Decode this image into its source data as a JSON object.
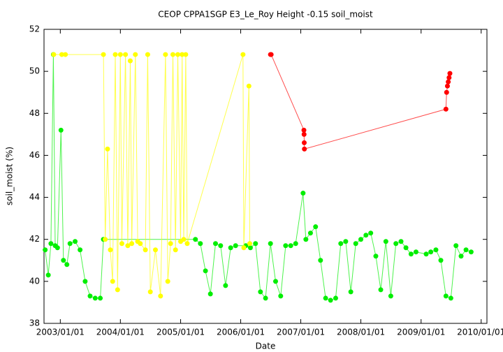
{
  "chart_data": {
    "type": "scatter",
    "title": "CEOP CPPA1SGP E3_Le_Roy Height -0.15 soil_moist",
    "xlabel": "Date",
    "ylabel": "soil_moist (%)",
    "xlim": [
      "2002/09/24",
      "2010/02/05"
    ],
    "xticks": [
      "2003/01/01",
      "2004/01/01",
      "2005/01/01",
      "2006/01/01",
      "2007/01/01",
      "2008/01/01",
      "2009/01/01",
      "2010/01/01"
    ],
    "ylim": [
      38,
      52
    ],
    "yticks": [
      38,
      40,
      42,
      44,
      46,
      48,
      50,
      52
    ],
    "series": [
      {
        "color": "#00ee00",
        "x": [
          "2002/10/01",
          "2002/10/20",
          "2002/11/05",
          "2002/11/20",
          "2002/12/01",
          "2002/12/15",
          "2003/01/05",
          "2003/01/20",
          "2003/02/10",
          "2003/03/01",
          "2003/04/01",
          "2003/05/01",
          "2003/06/01",
          "2003/07/01",
          "2003/08/01",
          "2003/09/01",
          "2003/09/20",
          "2005/04/01",
          "2005/05/01",
          "2005/06/01",
          "2005/07/01",
          "2005/08/01",
          "2005/09/01",
          "2005/10/01",
          "2005/11/01",
          "2005/12/01",
          "2006/02/01",
          "2006/03/01",
          "2006/04/01",
          "2006/05/01",
          "2006/06/01",
          "2006/07/01",
          "2006/08/01",
          "2006/09/01",
          "2006/10/01",
          "2006/11/01",
          "2006/12/01",
          "2007/01/15",
          "2007/02/01",
          "2007/03/01",
          "2007/04/01",
          "2007/05/01",
          "2007/06/01",
          "2007/07/01",
          "2007/08/01",
          "2007/09/01",
          "2007/10/01",
          "2007/11/01",
          "2007/12/01",
          "2008/01/01",
          "2008/02/01",
          "2008/03/01",
          "2008/04/01",
          "2008/05/01",
          "2008/06/01",
          "2008/07/01",
          "2008/08/01",
          "2008/09/01",
          "2008/10/01",
          "2008/11/01",
          "2008/12/01",
          "2009/02/01",
          "2009/03/01",
          "2009/04/01",
          "2009/05/01",
          "2009/06/01",
          "2009/07/01",
          "2009/08/01",
          "2009/09/01",
          "2009/10/01",
          "2009/11/01"
        ],
        "values": [
          41.5,
          40.3,
          41.8,
          50.8,
          41.7,
          41.6,
          47.2,
          41.0,
          40.8,
          41.8,
          41.9,
          41.5,
          40.0,
          39.3,
          39.2,
          39.2,
          42.0,
          42.0,
          41.8,
          40.5,
          39.4,
          41.8,
          41.7,
          39.8,
          41.6,
          41.7,
          41.7,
          41.6,
          41.8,
          39.5,
          39.2,
          41.8,
          40.0,
          39.3,
          41.7,
          41.7,
          41.8,
          44.2,
          42.0,
          42.3,
          42.6,
          41.0,
          39.2,
          39.1,
          39.2,
          41.8,
          41.9,
          39.5,
          41.8,
          42.0,
          42.2,
          42.3,
          41.2,
          39.6,
          41.9,
          39.3,
          41.8,
          41.9,
          41.6,
          41.3,
          41.4,
          41.3,
          41.4,
          41.5,
          41.0,
          39.3,
          39.2,
          41.7,
          41.2,
          41.5,
          41.4
        ]
      },
      {
        "color": "#ffff00",
        "x": [
          "2002/11/22",
          "2003/01/10",
          "2003/02/01",
          "2003/09/20",
          "2003/10/01",
          "2003/10/15",
          "2003/11/01",
          "2003/11/15",
          "2003/12/01",
          "2003/12/15",
          "2004/01/01",
          "2004/01/10",
          "2004/02/01",
          "2004/02/15",
          "2004/03/01",
          "2004/03/10",
          "2004/04/01",
          "2004/04/15",
          "2004/05/01",
          "2004/06/01",
          "2004/06/15",
          "2004/07/01",
          "2004/08/01",
          "2004/09/01",
          "2004/10/01",
          "2004/10/15",
          "2004/11/01",
          "2004/11/15",
          "2004/12/01",
          "2004/12/15",
          "2005/01/01",
          "2005/01/10",
          "2005/01/20",
          "2005/02/01",
          "2005/02/10",
          "2006/01/15",
          "2006/01/20",
          "2006/02/20",
          "2006/02/25"
        ],
        "values": [
          50.8,
          50.8,
          50.8,
          50.8,
          42.0,
          46.3,
          41.5,
          40.0,
          50.8,
          39.6,
          50.8,
          41.8,
          50.8,
          41.7,
          50.5,
          41.8,
          50.8,
          41.9,
          41.8,
          41.5,
          50.8,
          39.5,
          41.5,
          39.3,
          50.8,
          40.0,
          41.8,
          50.8,
          41.5,
          50.8,
          41.9,
          50.8,
          42.0,
          50.8,
          41.8,
          50.8,
          41.6,
          49.3,
          41.8
        ]
      },
      {
        "color": "#ff0000",
        "x": [
          "2006/07/01",
          "2006/07/05",
          "2007/01/20",
          "2007/01/21",
          "2007/01/22",
          "2007/01/23",
          "2009/06/01",
          "2009/06/05",
          "2009/06/10",
          "2009/06/15",
          "2009/06/20",
          "2009/06/25"
        ],
        "values": [
          50.8,
          50.8,
          47.2,
          47.0,
          46.6,
          46.3,
          48.2,
          49.0,
          49.3,
          49.5,
          49.7,
          49.9
        ]
      }
    ]
  }
}
